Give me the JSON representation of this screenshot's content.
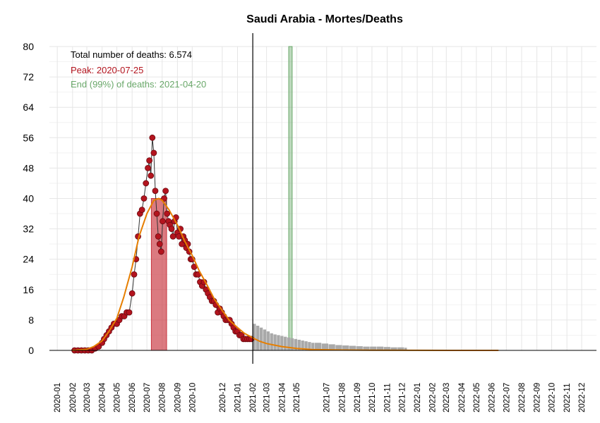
{
  "chart_data": {
    "type": "line",
    "title": "Saudi Arabia - Mortes/Deaths",
    "xlabel": "",
    "ylabel": "",
    "ylim": [
      0,
      80
    ],
    "yticks": [
      0,
      8,
      16,
      24,
      32,
      40,
      48,
      56,
      64,
      72,
      80
    ],
    "xlim": [
      "2019-12-16",
      "2022-12-31"
    ],
    "grid": true,
    "xtick_labels": [
      "2020-01",
      "2020-02",
      "2020-03",
      "2020-04",
      "2020-05",
      "2020-06",
      "2020-07",
      "2020-08",
      "2020-09",
      "2020-10",
      "2020-12",
      "2021-01",
      "2021-02",
      "2021-03",
      "2021-04",
      "2021-05",
      "2021-07",
      "2021-08",
      "2021-09",
      "2021-10",
      "2021-11",
      "2021-12",
      "2022-01",
      "2022-02",
      "2022-03",
      "2022-04",
      "2022-05",
      "2022-06",
      "2022-07",
      "2022-08",
      "2022-09",
      "2022-10",
      "2022-11",
      "2022-12"
    ],
    "annotations": {
      "total": "Total number of deaths: 6.574",
      "peak": "Peak: 2020-07-25",
      "end": "End (99%) of deaths: 2021-04-20"
    },
    "colors": {
      "observed_points": "#b3141e",
      "fit_curve": "#e67e00",
      "peak_band": "#c8323c",
      "end_band": "#6aa86a",
      "projection": "#a9a9a9",
      "annotation_total": "#000000",
      "annotation_peak": "#b3141e",
      "annotation_end": "#6aa86a"
    },
    "vline_date": "2021-02-01",
    "peak_band": [
      "2020-07-10",
      "2020-08-10"
    ],
    "end_band": [
      "2021-04-15",
      "2021-04-22"
    ],
    "fit_curve": {
      "name": "",
      "x": [
        "2020-02-01",
        "2020-03-01",
        "2020-03-15",
        "2020-04-01",
        "2020-04-15",
        "2020-05-01",
        "2020-05-15",
        "2020-06-01",
        "2020-06-15",
        "2020-07-01",
        "2020-07-15",
        "2020-07-25",
        "2020-08-01",
        "2020-08-15",
        "2020-09-01",
        "2020-09-15",
        "2020-10-01",
        "2020-10-15",
        "2020-11-01",
        "2020-11-15",
        "2020-12-01",
        "2020-12-15",
        "2021-01-01",
        "2021-01-15",
        "2021-02-01",
        "2021-02-15",
        "2021-03-01",
        "2021-04-01",
        "2021-05-01",
        "2021-06-01",
        "2021-08-01",
        "2021-10-01",
        "2022-01-01",
        "2022-06-15"
      ],
      "y": [
        0,
        0.3,
        1,
        2.5,
        5,
        8.5,
        14,
        22,
        30,
        36,
        39.5,
        40,
        39.5,
        37,
        33,
        29,
        25,
        21,
        17,
        13.5,
        10.5,
        8,
        6,
        4.5,
        3.3,
        2.4,
        1.8,
        1,
        0.5,
        0.25,
        0.1,
        0.05,
        0.02,
        0
      ]
    },
    "observed": {
      "name": "",
      "x": [
        "2020-02-05",
        "2020-02-12",
        "2020-02-19",
        "2020-02-26",
        "2020-03-04",
        "2020-03-11",
        "2020-03-18",
        "2020-03-25",
        "2020-04-01",
        "2020-04-05",
        "2020-04-10",
        "2020-04-15",
        "2020-04-20",
        "2020-04-25",
        "2020-05-01",
        "2020-05-06",
        "2020-05-11",
        "2020-05-16",
        "2020-05-21",
        "2020-05-26",
        "2020-06-01",
        "2020-06-05",
        "2020-06-09",
        "2020-06-13",
        "2020-06-17",
        "2020-06-21",
        "2020-06-25",
        "2020-06-29",
        "2020-07-03",
        "2020-07-06",
        "2020-07-09",
        "2020-07-12",
        "2020-07-15",
        "2020-07-18",
        "2020-07-21",
        "2020-07-24",
        "2020-07-27",
        "2020-07-30",
        "2020-08-02",
        "2020-08-05",
        "2020-08-08",
        "2020-08-11",
        "2020-08-14",
        "2020-08-17",
        "2020-08-20",
        "2020-08-23",
        "2020-08-26",
        "2020-08-29",
        "2020-09-01",
        "2020-09-04",
        "2020-09-07",
        "2020-09-10",
        "2020-09-13",
        "2020-09-16",
        "2020-09-19",
        "2020-09-22",
        "2020-09-25",
        "2020-09-28",
        "2020-10-01",
        "2020-10-05",
        "2020-10-09",
        "2020-10-13",
        "2020-10-17",
        "2020-10-21",
        "2020-10-25",
        "2020-10-29",
        "2020-11-02",
        "2020-11-06",
        "2020-11-10",
        "2020-11-14",
        "2020-11-18",
        "2020-11-22",
        "2020-11-26",
        "2020-11-30",
        "2020-12-04",
        "2020-12-08",
        "2020-12-12",
        "2020-12-16",
        "2020-12-20",
        "2020-12-24",
        "2020-12-28",
        "2021-01-01",
        "2021-01-05",
        "2021-01-09",
        "2021-01-13",
        "2021-01-17",
        "2021-01-21",
        "2021-01-25",
        "2021-01-29"
      ],
      "y": [
        0,
        0,
        0,
        0,
        0,
        0,
        0.5,
        1,
        2,
        3,
        4,
        5,
        6,
        7,
        7,
        8,
        9,
        9,
        10,
        10,
        15,
        20,
        24,
        30,
        36,
        37,
        40,
        44,
        48,
        50,
        46,
        56,
        52,
        42,
        36,
        30,
        28,
        26,
        34,
        40,
        42,
        36,
        34,
        33,
        32,
        30,
        34,
        35,
        31,
        30,
        32,
        28,
        30,
        29,
        27,
        28,
        26,
        24,
        24,
        22,
        20,
        20,
        18,
        17,
        18,
        16,
        15,
        14,
        13,
        13,
        12,
        10,
        11,
        10,
        9,
        8,
        8,
        8,
        7,
        6,
        5,
        5,
        4,
        4,
        3,
        3,
        3,
        3,
        3
      ]
    },
    "projection": {
      "name": "",
      "x": [
        "2021-02-01",
        "2021-02-08",
        "2021-02-15",
        "2021-02-22",
        "2021-03-01",
        "2021-03-08",
        "2021-03-15",
        "2021-03-22",
        "2021-03-29",
        "2021-04-05",
        "2021-04-12",
        "2021-04-19",
        "2021-04-26",
        "2021-05-03",
        "2021-05-10",
        "2021-05-17",
        "2021-05-24",
        "2021-05-31",
        "2021-06-07",
        "2021-06-21",
        "2021-07-05",
        "2021-07-19",
        "2021-08-02",
        "2021-08-16",
        "2021-08-30",
        "2021-09-13",
        "2021-09-27",
        "2021-10-11",
        "2021-10-25",
        "2021-11-08",
        "2021-11-22",
        "2021-12-06"
      ],
      "y": [
        7,
        6.5,
        6,
        5.5,
        5,
        4.5,
        4.2,
        4,
        3.8,
        3.6,
        3.4,
        3.2,
        3,
        2.8,
        2.6,
        2.4,
        2.2,
        2,
        2,
        1.8,
        1.6,
        1.4,
        1.3,
        1.2,
        1.1,
        1,
        1,
        1,
        0.9,
        0.8,
        0.8,
        0.7
      ]
    }
  }
}
